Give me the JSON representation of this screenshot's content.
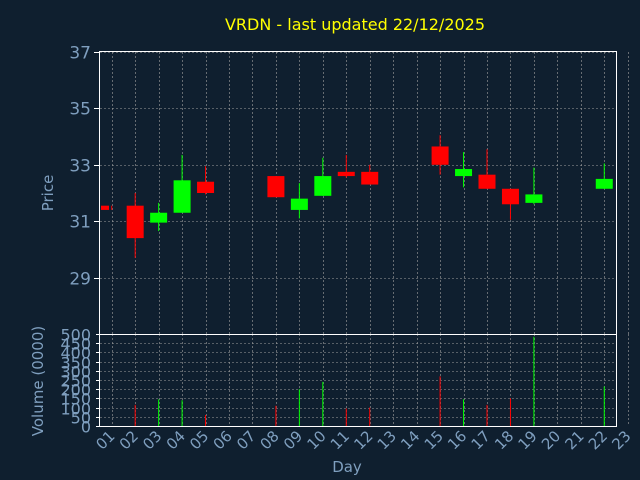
{
  "chart_data": {
    "type": "candlestick",
    "title": "VRDN - last updated 22/12/2025",
    "xlabel": "Day",
    "price_panel": {
      "ylabel": "Price",
      "ylim": [
        27,
        37
      ],
      "yticks": [
        29,
        31,
        33,
        35,
        37
      ]
    },
    "volume_panel": {
      "ylabel": "Volume (0000)",
      "ylim": [
        0,
        500
      ],
      "yticks": [
        0,
        50,
        100,
        150,
        200,
        250,
        300,
        350,
        400,
        450,
        500
      ]
    },
    "x_labels": [
      "01",
      "02",
      "03",
      "04",
      "05",
      "06",
      "07",
      "08",
      "09",
      "10",
      "11",
      "12",
      "13",
      "14",
      "15",
      "16",
      "17",
      "18",
      "19",
      "20",
      "21",
      "22",
      "23"
    ],
    "candles": [
      {
        "day": 1,
        "open": 31.55,
        "high": 31.55,
        "low": 31.4,
        "close": 31.4,
        "volume": 0
      },
      {
        "day": 2,
        "open": 31.55,
        "high": 32.0,
        "low": 29.7,
        "close": 30.4,
        "volume": 115
      },
      {
        "day": 3,
        "open": 30.95,
        "high": 31.65,
        "low": 30.65,
        "close": 31.3,
        "volume": 145
      },
      {
        "day": 4,
        "open": 31.3,
        "high": 33.35,
        "low": 31.3,
        "close": 32.45,
        "volume": 140
      },
      {
        "day": 5,
        "open": 32.4,
        "high": 32.95,
        "low": 31.95,
        "close": 32.0,
        "volume": 60
      },
      {
        "day": 8,
        "open": 32.6,
        "high": 32.6,
        "low": 31.85,
        "close": 31.85,
        "volume": 110
      },
      {
        "day": 9,
        "open": 31.4,
        "high": 32.35,
        "low": 31.1,
        "close": 31.8,
        "volume": 200
      },
      {
        "day": 10,
        "open": 31.9,
        "high": 33.25,
        "low": 31.9,
        "close": 32.6,
        "volume": 240
      },
      {
        "day": 11,
        "open": 32.75,
        "high": 33.35,
        "low": 32.55,
        "close": 32.6,
        "volume": 95
      },
      {
        "day": 12,
        "open": 32.75,
        "high": 33.0,
        "low": 32.3,
        "close": 32.3,
        "volume": 100
      },
      {
        "day": 15,
        "open": 33.65,
        "high": 34.05,
        "low": 32.65,
        "close": 33.0,
        "volume": 270
      },
      {
        "day": 16,
        "open": 32.6,
        "high": 33.45,
        "low": 32.2,
        "close": 32.85,
        "volume": 145
      },
      {
        "day": 17,
        "open": 32.65,
        "high": 33.55,
        "low": 32.15,
        "close": 32.15,
        "volume": 115
      },
      {
        "day": 18,
        "open": 32.15,
        "high": 32.15,
        "low": 31.05,
        "close": 31.6,
        "volume": 150
      },
      {
        "day": 19,
        "open": 31.65,
        "high": 32.9,
        "low": 31.6,
        "close": 31.95,
        "volume": 485
      },
      {
        "day": 22,
        "open": 32.15,
        "high": 33.05,
        "low": 32.15,
        "close": 32.5,
        "volume": 215
      }
    ],
    "colors": {
      "background": "#0f1f2f",
      "axis_text": "#7f9fbf",
      "title": "#ffff00",
      "grid": "#a0a0a0",
      "up": "#00ff00",
      "down": "#ff0000"
    },
    "grid": true
  }
}
